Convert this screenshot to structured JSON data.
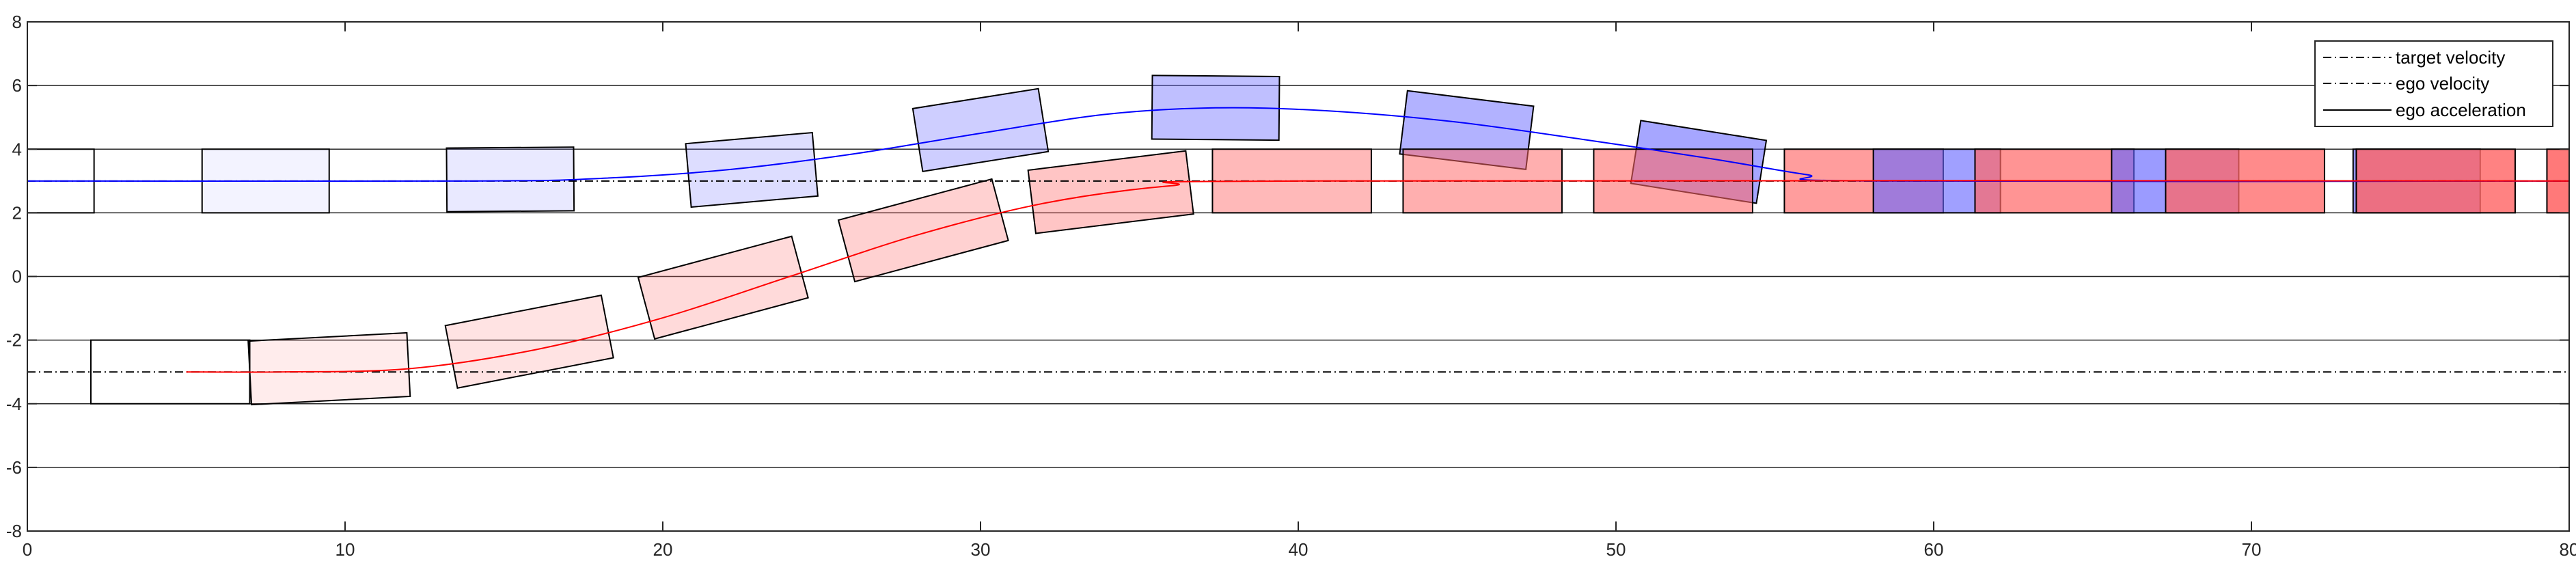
{
  "chart_data": {
    "type": "line",
    "title": "",
    "xlabel": "",
    "ylabel": "",
    "xlim": [
      0,
      80
    ],
    "ylim": [
      -8,
      8
    ],
    "xticks": [
      "0",
      "10",
      "20",
      "30",
      "40",
      "50",
      "60",
      "70",
      "80"
    ],
    "yticks": [
      "-8",
      "-6",
      "-4",
      "-2",
      "0",
      "2",
      "4",
      "6",
      "8"
    ],
    "grid": "horizontal",
    "legend_position": "top-right",
    "legend": [
      {
        "label": "target velocity",
        "style": "dashdot"
      },
      {
        "label": "ego velocity",
        "style": "dashdot"
      },
      {
        "label": "ego acceleration",
        "style": "solid"
      }
    ],
    "reference_lines": [
      {
        "y": 3,
        "style": "dashdot",
        "color": "#000000"
      },
      {
        "y": -3,
        "style": "dashdot",
        "color": "#000000"
      }
    ],
    "series": [
      {
        "color": "#0000ff",
        "x": [
          0,
          14,
          18,
          22,
          26,
          30,
          34,
          37.5,
          41,
          45,
          49,
          53,
          56,
          58,
          80
        ],
        "y": [
          3,
          3,
          3.08,
          3.35,
          3.85,
          4.5,
          5.1,
          5.3,
          5.2,
          4.85,
          4.3,
          3.7,
          3.2,
          3,
          3
        ]
      },
      {
        "color": "#ff0000",
        "x": [
          5,
          8,
          12,
          16,
          20,
          24,
          28,
          32,
          36,
          40,
          80
        ],
        "y": [
          -3,
          -3,
          -2.9,
          -2.3,
          -1.3,
          0,
          1.3,
          2.3,
          2.85,
          3,
          3
        ]
      }
    ],
    "boxes": [
      {
        "group": "blue",
        "cx": 0,
        "cy": 3,
        "w": 4.2,
        "h": 2,
        "angle": 0,
        "fill": "#ffffff",
        "opacity": 0
      },
      {
        "group": "blue",
        "cx": 7.5,
        "cy": 3,
        "w": 4,
        "h": 2,
        "angle": 0,
        "fill": "#6666ff",
        "opacity": 0.08
      },
      {
        "group": "blue",
        "cx": 15.2,
        "cy": 3.05,
        "w": 4,
        "h": 2,
        "angle": 0.4,
        "fill": "#6666ff",
        "opacity": 0.14
      },
      {
        "group": "blue",
        "cx": 22.8,
        "cy": 3.35,
        "w": 4,
        "h": 2,
        "angle": 5,
        "fill": "#6666ff",
        "opacity": 0.22
      },
      {
        "group": "blue",
        "cx": 30,
        "cy": 4.6,
        "w": 4,
        "h": 2,
        "angle": 9,
        "fill": "#6666ff",
        "opacity": 0.32
      },
      {
        "group": "blue",
        "cx": 37.4,
        "cy": 5.3,
        "w": 4,
        "h": 2,
        "angle": -0.5,
        "fill": "#6666ff",
        "opacity": 0.42
      },
      {
        "group": "blue",
        "cx": 45.3,
        "cy": 4.6,
        "w": 4,
        "h": 2,
        "angle": -7,
        "fill": "#6666ff",
        "opacity": 0.5
      },
      {
        "group": "blue",
        "cx": 52.6,
        "cy": 3.6,
        "w": 4,
        "h": 2,
        "angle": -9,
        "fill": "#6666ff",
        "opacity": 0.58
      },
      {
        "group": "red",
        "cx": 9.5,
        "cy": -2.9,
        "w": 5,
        "h": 2,
        "angle": 3,
        "fill": "#ff6666",
        "opacity": 0.12
      },
      {
        "group": "red",
        "cx": 15.8,
        "cy": -2.05,
        "w": 5,
        "h": 2,
        "angle": 11,
        "fill": "#ff6666",
        "opacity": 0.18
      },
      {
        "group": "red",
        "cx": 21.9,
        "cy": -0.35,
        "w": 5,
        "h": 2,
        "angle": 15,
        "fill": "#ff6666",
        "opacity": 0.24
      },
      {
        "group": "red",
        "cx": 28.2,
        "cy": 1.45,
        "w": 5,
        "h": 2,
        "angle": 15,
        "fill": "#ff6666",
        "opacity": 0.3
      },
      {
        "group": "red",
        "cx": 34.1,
        "cy": 2.65,
        "w": 5,
        "h": 2,
        "angle": 7,
        "fill": "#ff6666",
        "opacity": 0.38
      },
      {
        "group": "red",
        "cx": 39.8,
        "cy": 3,
        "w": 5,
        "h": 2,
        "angle": 0,
        "fill": "#ff6666",
        "opacity": 0.46
      },
      {
        "group": "red",
        "cx": 45.8,
        "cy": 3,
        "w": 5,
        "h": 2,
        "angle": 0,
        "fill": "#ff6666",
        "opacity": 0.52
      },
      {
        "group": "red",
        "cx": 51.8,
        "cy": 3,
        "w": 5,
        "h": 2,
        "angle": 0,
        "fill": "#ff6666",
        "opacity": 0.58
      },
      {
        "group": "red",
        "cx": 57.8,
        "cy": 3,
        "w": 5,
        "h": 2,
        "angle": 0,
        "fill": "#ff6666",
        "opacity": 0.64
      },
      {
        "group": "blue",
        "cx": 60.1,
        "cy": 3,
        "w": 4,
        "h": 2,
        "angle": 0,
        "fill": "#6666ff",
        "opacity": 0.62
      },
      {
        "group": "red",
        "cx": 63.8,
        "cy": 3,
        "w": 5,
        "h": 2,
        "angle": 0,
        "fill": "#ff6666",
        "opacity": 0.7
      },
      {
        "group": "blue",
        "cx": 67.6,
        "cy": 3,
        "w": 4,
        "h": 2,
        "angle": 0,
        "fill": "#6666ff",
        "opacity": 0.65
      },
      {
        "group": "red",
        "cx": 69.8,
        "cy": 3,
        "w": 5,
        "h": 2,
        "angle": 0,
        "fill": "#ff6666",
        "opacity": 0.76
      },
      {
        "group": "blue",
        "cx": 75.2,
        "cy": 3,
        "w": 4,
        "h": 2,
        "angle": 0,
        "fill": "#6666ff",
        "opacity": 0.7
      },
      {
        "group": "red",
        "cx": 75.8,
        "cy": 3,
        "w": 5,
        "h": 2,
        "angle": 0,
        "fill": "#ff6666",
        "opacity": 0.82
      },
      {
        "group": "red",
        "cx": 81.8,
        "cy": 3,
        "w": 5,
        "h": 2,
        "angle": 0,
        "fill": "#ff6666",
        "opacity": 0.88
      },
      {
        "group": "blue",
        "cx": 4.5,
        "cy": -3,
        "w": 5,
        "h": 2,
        "angle": 0,
        "fill": "#ffffff",
        "opacity": 0
      }
    ]
  }
}
